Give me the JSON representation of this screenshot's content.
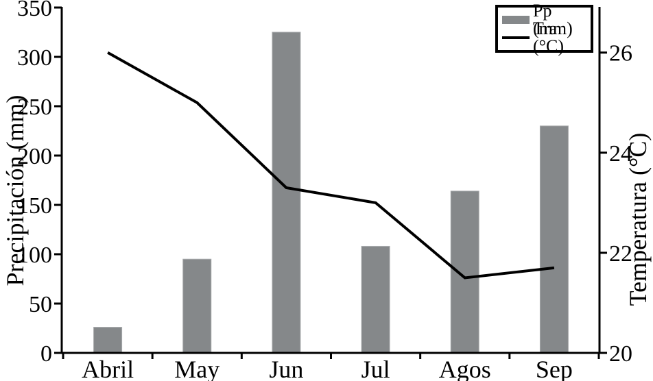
{
  "chart_data": {
    "type": "bar",
    "subtype": "bar-line-combo",
    "categories": [
      "Abril",
      "May",
      "Jun",
      "Jul",
      "Agos",
      "Sep"
    ],
    "series": [
      {
        "name": "Pp (mm)",
        "type": "bar",
        "axis": "left",
        "values": [
          26,
          95,
          325,
          108,
          164,
          230
        ]
      },
      {
        "name": "Tra (°C)",
        "type": "line",
        "axis": "right",
        "values": [
          26.0,
          25.0,
          23.3,
          23.0,
          21.5,
          21.7
        ]
      }
    ],
    "left_axis": {
      "label": "Precipitación (mm)",
      "min": 0,
      "max": 350,
      "tick_step": 50,
      "ticks": [
        0,
        50,
        100,
        150,
        200,
        250,
        300,
        350
      ]
    },
    "right_axis": {
      "label": "Temperatura (°C)",
      "min": 20,
      "max": 26.9,
      "ticks": [
        20,
        22,
        24,
        26
      ]
    },
    "legend": {
      "position": "top-right",
      "entries": [
        "Pp (mm)",
        "Tra (°C)"
      ]
    },
    "grid": false,
    "colors": {
      "bar_fill": "#85888a",
      "bar_border": "#a8aaac",
      "line": "#000000",
      "axis": "#000000",
      "background": "#ffffff"
    }
  }
}
